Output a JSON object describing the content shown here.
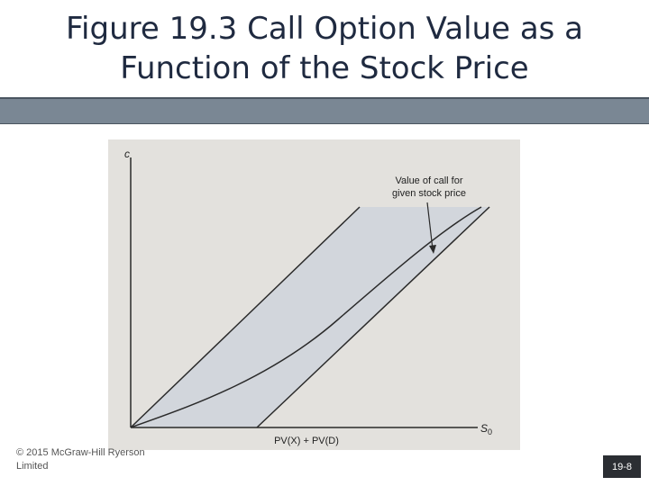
{
  "slide": {
    "title_line1": "Figure 19.3 Call Option Value as a",
    "title_line2": "Function of the Stock Price",
    "copyright_line1": "© 2015 McGraw-Hill Ryerson",
    "copyright_line2": "Limited",
    "slide_number": "19-8"
  },
  "figure": {
    "y_axis_label": "c",
    "x_axis_label": "S",
    "x_axis_subscript": "0",
    "x_intercept_label": "PV(X) + PV(D)",
    "annotation_line1": "Value of call for",
    "annotation_line2": "given stock price"
  },
  "colors": {
    "title_text": "#1f2a40",
    "title_bar": "#7a8794",
    "figure_background": "#e3e1dd",
    "shaded_region": "#d2d6dc",
    "slide_number_bg": "#2b2e33"
  }
}
